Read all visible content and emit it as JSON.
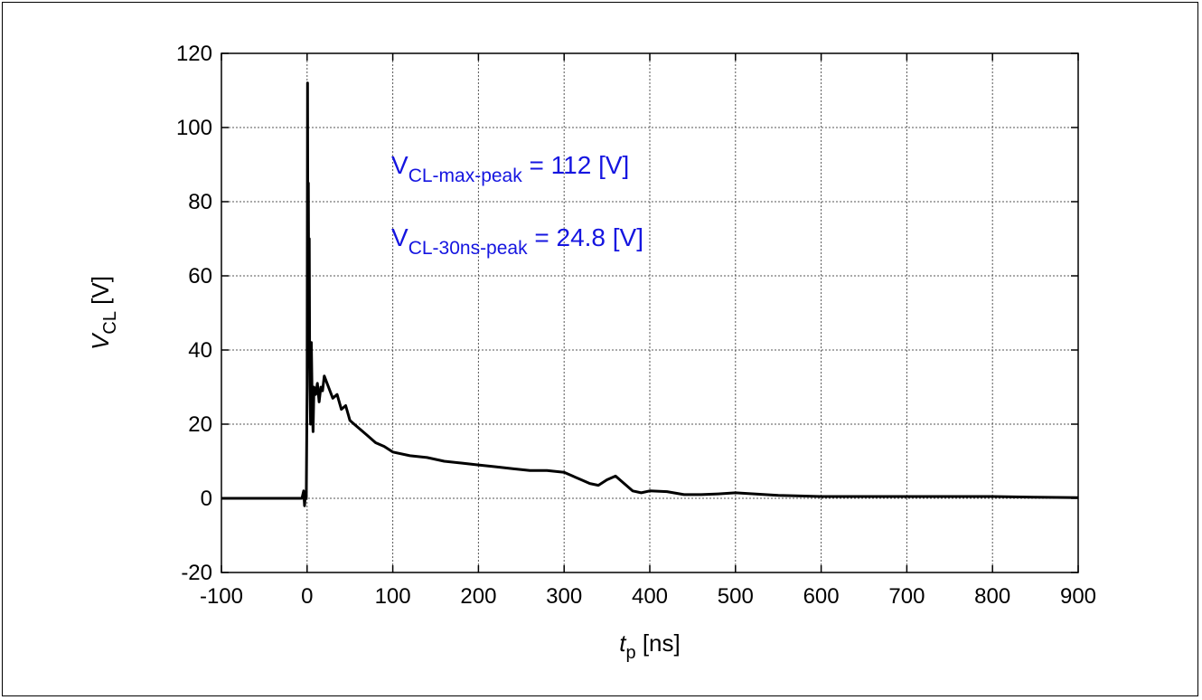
{
  "chart_data": {
    "type": "line",
    "title": "",
    "xlabel": {
      "var": "t",
      "sub": "p",
      "unit": " [ns]"
    },
    "ylabel": {
      "var": "V",
      "sub": "CL",
      "unit": " [V]"
    },
    "xlim": [
      -100,
      900
    ],
    "ylim": [
      -20,
      120
    ],
    "xticks": [
      -100,
      0,
      100,
      200,
      300,
      400,
      500,
      600,
      700,
      800,
      900
    ],
    "yticks": [
      -20,
      0,
      20,
      40,
      60,
      80,
      100,
      120
    ],
    "grid": true,
    "legend": "none",
    "series": [
      {
        "color": "#000000",
        "x": [
          -100,
          -50,
          -10,
          -6,
          -4,
          -3,
          -2,
          -1,
          0,
          0.5,
          1,
          1.5,
          2,
          2.5,
          3,
          3.5,
          4,
          5,
          6,
          7,
          8,
          10,
          12,
          14,
          16,
          18,
          20,
          25,
          30,
          35,
          40,
          45,
          50,
          55,
          60,
          70,
          80,
          90,
          100,
          120,
          140,
          160,
          180,
          200,
          220,
          240,
          260,
          280,
          300,
          310,
          320,
          330,
          340,
          350,
          360,
          370,
          380,
          390,
          400,
          420,
          440,
          460,
          480,
          500,
          550,
          600,
          650,
          700,
          750,
          800,
          850,
          900
        ],
        "y": [
          0,
          0,
          0,
          0,
          2,
          -2,
          1,
          0,
          30,
          112,
          60,
          85,
          45,
          70,
          40,
          30,
          20,
          42,
          25,
          18,
          30,
          28,
          31,
          26,
          30,
          29,
          33,
          30,
          27,
          28,
          24,
          25,
          21,
          20,
          19,
          17,
          15,
          14,
          12.5,
          11.5,
          11,
          10,
          9.5,
          9,
          8.5,
          8,
          7.5,
          7.5,
          7,
          6,
          5,
          4,
          3.5,
          5,
          6,
          4,
          2,
          1.5,
          2,
          1.8,
          1,
          1,
          1.2,
          1.5,
          0.8,
          0.5,
          0.5,
          0.5,
          0.5,
          0.5,
          0.3,
          0.2
        ]
      }
    ],
    "annotations": [
      {
        "text": "V",
        "sub": "CL-max-peak",
        "rest": " = 112 [V]",
        "color": "#1515e0"
      },
      {
        "text": "V",
        "sub": "CL-30ns-peak",
        "rest": " = 24.8 [V]",
        "color": "#1515e0"
      }
    ]
  }
}
